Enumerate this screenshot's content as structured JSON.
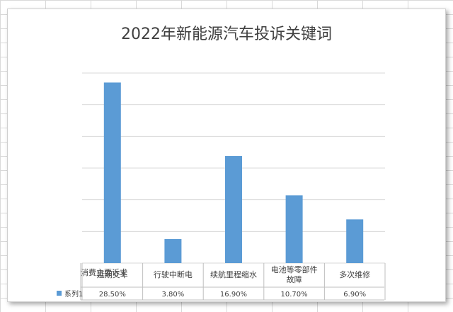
{
  "chart_data": {
    "type": "bar",
    "title": "2022年新能源汽车投诉关键词",
    "table_header": "消费主要诉求",
    "categories": [
      "延期交车",
      "行驶中断电",
      "续航里程缩水",
      "电池等零部件故障",
      "多次维修"
    ],
    "category_lines": [
      [
        "延期交车"
      ],
      [
        "行驶中断电"
      ],
      [
        "续航里程缩水"
      ],
      [
        "电池等零部件",
        "故障"
      ],
      [
        "多次维修"
      ]
    ],
    "series": [
      {
        "name": "系列1",
        "values": [
          28.5,
          3.8,
          16.9,
          10.7,
          6.9
        ],
        "labels": [
          "28.50%",
          "3.80%",
          "16.90%",
          "10.70%",
          "6.90%"
        ]
      }
    ],
    "ylim": [
      0,
      30
    ],
    "grid": true,
    "legend": "data-table",
    "colors": {
      "bar": "#5b9bd5",
      "grid": "#d9d9d9",
      "text": "#404040"
    }
  }
}
